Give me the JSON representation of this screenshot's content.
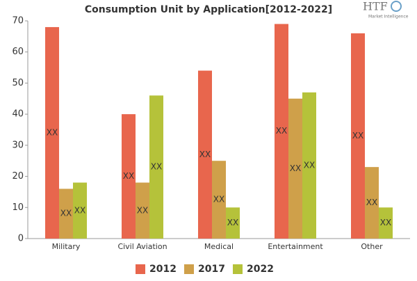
{
  "logo": {
    "name": "HTF",
    "tagline": "Market Intelligence"
  },
  "chart_data": {
    "type": "bar",
    "title": "Consumption Unit by  Application[2012-2022]",
    "categories": [
      "Military",
      "Civil Aviation",
      "Medical",
      "Entertainment",
      "Other"
    ],
    "series": [
      {
        "name": "2012",
        "color": "#e8664d",
        "values": [
          68,
          40,
          54,
          69,
          66
        ]
      },
      {
        "name": "2017",
        "color": "#cfa04a",
        "values": [
          16,
          18,
          25,
          45,
          23
        ]
      },
      {
        "name": "2022",
        "color": "#b5c23a",
        "values": [
          18,
          46,
          10,
          47,
          10
        ]
      }
    ],
    "data_label": "XX",
    "ylim": [
      0,
      70
    ],
    "yticks": [
      0,
      10,
      20,
      30,
      40,
      50,
      60,
      70
    ],
    "grid": false,
    "legend": "bottom"
  }
}
